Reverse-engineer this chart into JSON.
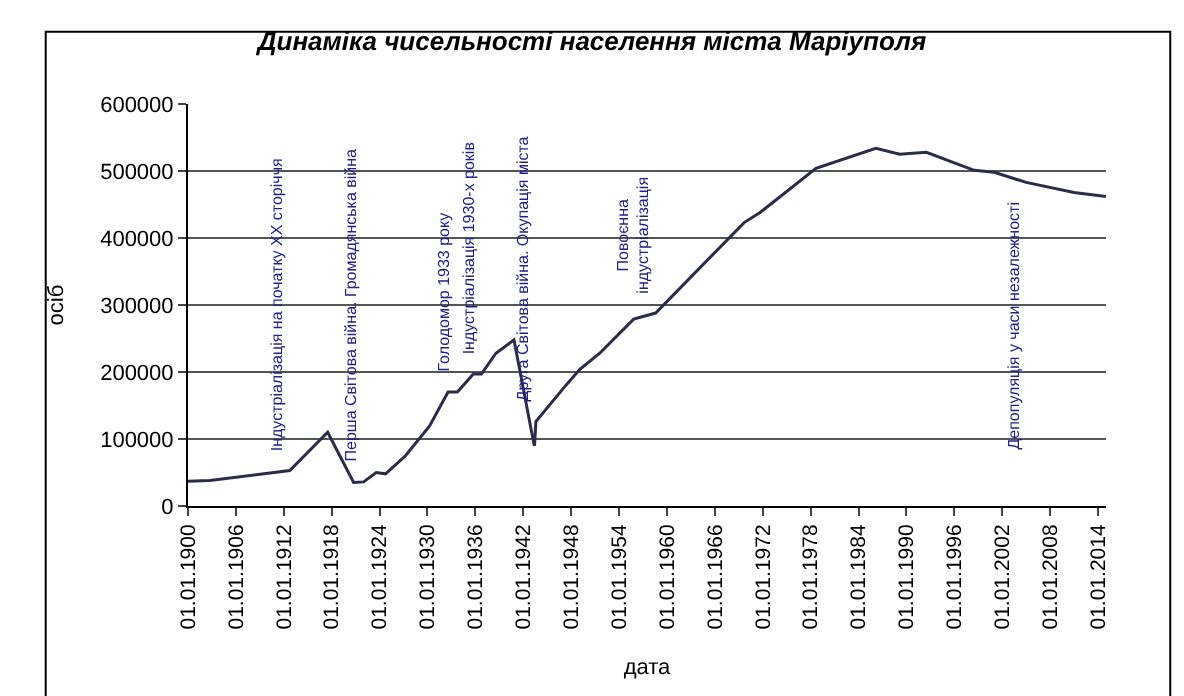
{
  "chart_data": {
    "type": "line",
    "title": "Динаміка чисельності населення міста Маріуполя",
    "xlabel": "дата",
    "ylabel": "осіб",
    "x": [
      "1900-01",
      "1902-10",
      "1912-10",
      "1917-07",
      "1920-10",
      "1922-01",
      "1923-08",
      "1924-10",
      "1927-04",
      "1930-04",
      "1932-08",
      "1933-10",
      "1935-10",
      "1936-10",
      "1938-08",
      "1940-11",
      "1943-05",
      "1943-06",
      "1943-08",
      "1947-05",
      "1949-02",
      "1951-08",
      "1955-11",
      "1958-08",
      "1969-09",
      "1971-09",
      "1978-09",
      "1986-03",
      "1989-03",
      "1992-07",
      "1998-07",
      "2001-01",
      "2005-01",
      "2011-01",
      "2015-01"
    ],
    "series": [
      {
        "color": "#2b2b4a",
        "values": [
          37000,
          38000,
          53000,
          110000,
          35000,
          36000,
          50000,
          48000,
          75000,
          119000,
          170000,
          170000,
          197000,
          197000,
          228000,
          248000,
          93000,
          90000,
          126000,
          180000,
          204000,
          228000,
          279000,
          288000,
          423000,
          438000,
          504000,
          534000,
          525000,
          528000,
          501000,
          498000,
          483000,
          468000,
          462000
        ]
      }
    ],
    "xlim": [
      "1900-01-01",
      "2015-01-01"
    ],
    "xticks": [
      {
        "value": "1900-01-01",
        "label": "01.01.1900"
      },
      {
        "value": "1906-01-01",
        "label": "01.01.1906"
      },
      {
        "value": "1912-01-01",
        "label": "01.01.1912"
      },
      {
        "value": "1918-01-01",
        "label": "01.01.1918"
      },
      {
        "value": "1924-01-01",
        "label": "01.01.1924"
      },
      {
        "value": "1930-01-01",
        "label": "01.01.1930"
      },
      {
        "value": "1936-01-01",
        "label": "01.01.1936"
      },
      {
        "value": "1942-01-01",
        "label": "01.01.1942"
      },
      {
        "value": "1948-01-01",
        "label": "01.01.1948"
      },
      {
        "value": "1954-01-01",
        "label": "01.01.1954"
      },
      {
        "value": "1960-01-01",
        "label": "01.01.1960"
      },
      {
        "value": "1966-01-01",
        "label": "01.01.1966"
      },
      {
        "value": "1972-01-01",
        "label": "01.01.1972"
      },
      {
        "value": "1978-01-01",
        "label": "01.01.1978"
      },
      {
        "value": "1984-01-01",
        "label": "01.01.1984"
      },
      {
        "value": "1990-01-01",
        "label": "01.01.1990"
      },
      {
        "value": "1996-01-01",
        "label": "01.01.1996"
      },
      {
        "value": "2002-01-01",
        "label": "01.01.2002"
      },
      {
        "value": "2008-01-01",
        "label": "01.01.2008"
      },
      {
        "value": "2014-01-01",
        "label": "01.01.2014"
      }
    ],
    "ylim": [
      0,
      600000
    ],
    "yticks": [
      0,
      100000,
      200000,
      300000,
      400000,
      500000,
      600000
    ],
    "grid": "y",
    "marker": "none",
    "line_style": "solid",
    "annotations": [
      {
        "text": "Індустріалізація на початку XX сторіччя",
        "x": "1912-10",
        "y": 53000
      },
      {
        "text": "Перша Світова війна. Громадянська війна",
        "x": "1922-01",
        "y": 36000
      },
      {
        "text": "Голодомор 1933 року",
        "x": "1933-10",
        "y": 170000
      },
      {
        "text": "Індустріалізація 1930-х років",
        "x": "1936-10",
        "y": 197000
      },
      {
        "text": "Друга Світова війна. Окупація міста",
        "x": "1943-08",
        "y": 126000
      },
      {
        "text": "Повоєнна\nіндустріалізація",
        "x": "1958-08",
        "y": 288000
      },
      {
        "text": "Депопуляція у часи незалежності",
        "x": "2005-01",
        "y": 483000
      }
    ]
  }
}
